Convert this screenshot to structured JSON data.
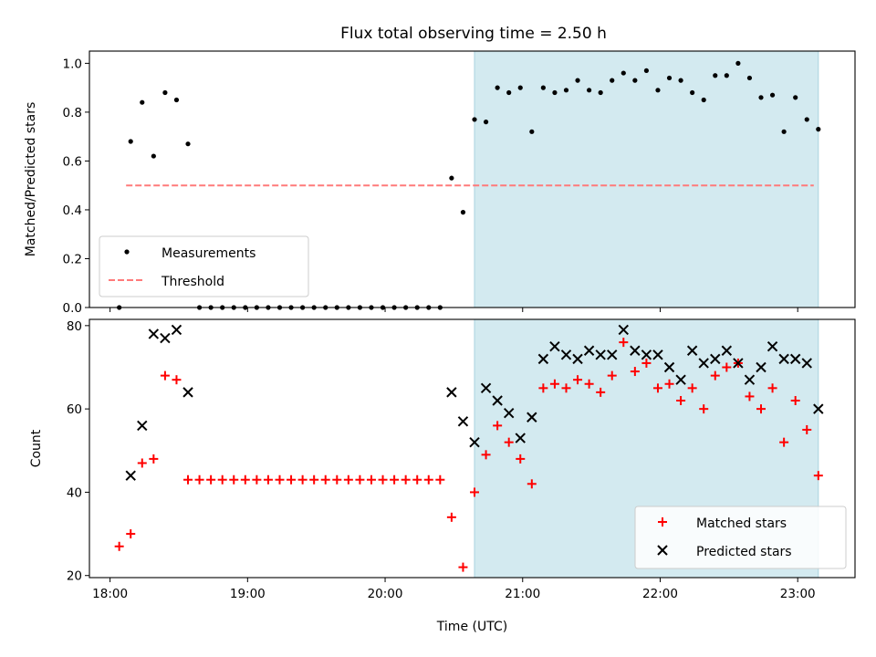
{
  "title": "Flux total observing time = 2.50 h",
  "x_label": "Time (UTC)",
  "x_ticks": [
    "18:00",
    "19:00",
    "20:00",
    "21:00",
    "22:00",
    "23:00"
  ],
  "chart_data": [
    {
      "type": "scatter",
      "xlabel": "",
      "ylabel": "Matched/Predicted stars",
      "xlim": [
        "17:51",
        "23:25"
      ],
      "ylim": [
        0,
        1.05
      ],
      "yticks": [
        "0.0",
        "0.2",
        "0.4",
        "0.6",
        "0.8",
        "1.0"
      ],
      "shaded_region": {
        "x0": "20:39",
        "x1": "23:09",
        "color": "#d3eaf0"
      },
      "legend": {
        "location": "lower-left",
        "entries": [
          "Measurements",
          "Threshold"
        ]
      },
      "series": [
        {
          "name": "Measurements",
          "marker": "dot",
          "color": "#000000",
          "x": [
            "18:04",
            "18:09",
            "18:14",
            "18:19",
            "18:24",
            "18:29",
            "18:34",
            "18:39",
            "18:44",
            "18:49",
            "18:54",
            "18:59",
            "19:04",
            "19:09",
            "19:14",
            "19:19",
            "19:24",
            "19:29",
            "19:34",
            "19:39",
            "19:44",
            "19:49",
            "19:54",
            "19:59",
            "20:04",
            "20:09",
            "20:14",
            "20:19",
            "20:24",
            "20:29",
            "20:34",
            "20:39",
            "20:44",
            "20:49",
            "20:54",
            "20:59",
            "21:04",
            "21:09",
            "21:14",
            "21:19",
            "21:24",
            "21:29",
            "21:34",
            "21:39",
            "21:44",
            "21:49",
            "21:54",
            "21:59",
            "22:04",
            "22:09",
            "22:14",
            "22:19",
            "22:24",
            "22:29",
            "22:34",
            "22:39",
            "22:44",
            "22:49",
            "22:54",
            "22:59",
            "23:04",
            "23:09"
          ],
          "y": [
            0.0,
            0.68,
            0.84,
            0.62,
            0.88,
            0.85,
            0.67,
            0.0,
            0.0,
            0.0,
            0.0,
            0.0,
            0.0,
            0.0,
            0.0,
            0.0,
            0.0,
            0.0,
            0.0,
            0.0,
            0.0,
            0.0,
            0.0,
            0.0,
            0.0,
            0.0,
            0.0,
            0.0,
            0.0,
            0.53,
            0.39,
            0.77,
            0.76,
            0.9,
            0.88,
            0.9,
            0.72,
            0.9,
            0.88,
            0.89,
            0.93,
            0.89,
            0.88,
            0.93,
            0.96,
            0.93,
            0.97,
            0.89,
            0.94,
            0.93,
            0.88,
            0.85,
            0.95,
            0.95,
            1.0,
            0.94,
            0.86,
            0.87,
            0.72,
            0.86,
            0.77,
            0.73
          ]
        },
        {
          "name": "Threshold",
          "style": "dashed",
          "color": "#ff7a7a",
          "x": [
            "18:07",
            "23:07"
          ],
          "y": [
            0.5,
            0.5
          ]
        }
      ]
    },
    {
      "type": "scatter",
      "xlabel": "Time (UTC)",
      "ylabel": "Count",
      "xlim": [
        "17:51",
        "23:25"
      ],
      "ylim": [
        19.5,
        81.5
      ],
      "yticks": [
        "20",
        "40",
        "60",
        "80"
      ],
      "shaded_region": {
        "x0": "20:39",
        "x1": "23:09",
        "color": "#d3eaf0"
      },
      "legend": {
        "location": "lower-right",
        "entries": [
          "Matched stars",
          "Predicted stars"
        ]
      },
      "series": [
        {
          "name": "Matched stars",
          "marker": "plus",
          "color": "#ff0000",
          "x": [
            "18:04",
            "18:09",
            "18:14",
            "18:19",
            "18:24",
            "18:29",
            "18:34",
            "18:39",
            "18:44",
            "18:49",
            "18:54",
            "18:59",
            "19:04",
            "19:09",
            "19:14",
            "19:19",
            "19:24",
            "19:29",
            "19:34",
            "19:39",
            "19:44",
            "19:49",
            "19:54",
            "19:59",
            "20:04",
            "20:09",
            "20:14",
            "20:19",
            "20:24",
            "20:29",
            "20:34",
            "20:39",
            "20:44",
            "20:49",
            "20:54",
            "20:59",
            "21:04",
            "21:09",
            "21:14",
            "21:19",
            "21:24",
            "21:29",
            "21:34",
            "21:39",
            "21:44",
            "21:49",
            "21:54",
            "21:59",
            "22:04",
            "22:09",
            "22:14",
            "22:19",
            "22:24",
            "22:29",
            "22:34",
            "22:39",
            "22:44",
            "22:49",
            "22:54",
            "22:59",
            "23:04",
            "23:09"
          ],
          "y": [
            27,
            30,
            47,
            48,
            68,
            67,
            43,
            43,
            43,
            43,
            43,
            43,
            43,
            43,
            43,
            43,
            43,
            43,
            43,
            43,
            43,
            43,
            43,
            43,
            43,
            43,
            43,
            43,
            43,
            34,
            22,
            40,
            49,
            56,
            52,
            48,
            42,
            65,
            66,
            65,
            67,
            66,
            64,
            68,
            76,
            69,
            71,
            65,
            66,
            62,
            65,
            60,
            68,
            70,
            71,
            63,
            60,
            65,
            52,
            62,
            55,
            44
          ]
        },
        {
          "name": "Predicted stars",
          "marker": "x",
          "color": "#000000",
          "x": [
            "18:09",
            "18:14",
            "18:19",
            "18:24",
            "18:29",
            "18:34",
            "20:29",
            "20:34",
            "20:39",
            "20:44",
            "20:49",
            "20:54",
            "20:59",
            "21:04",
            "21:09",
            "21:14",
            "21:19",
            "21:24",
            "21:29",
            "21:34",
            "21:39",
            "21:44",
            "21:49",
            "21:54",
            "21:59",
            "22:04",
            "22:09",
            "22:14",
            "22:19",
            "22:24",
            "22:29",
            "22:34",
            "22:39",
            "22:44",
            "22:49",
            "22:54",
            "22:59",
            "23:04",
            "23:09"
          ],
          "y": [
            44,
            56,
            78,
            77,
            79,
            64,
            64,
            57,
            52,
            65,
            62,
            59,
            53,
            58,
            72,
            75,
            73,
            72,
            74,
            73,
            73,
            79,
            74,
            73,
            73,
            70,
            67,
            74,
            71,
            72,
            74,
            71,
            67,
            70,
            75,
            72,
            72,
            71,
            60
          ]
        }
      ]
    }
  ]
}
